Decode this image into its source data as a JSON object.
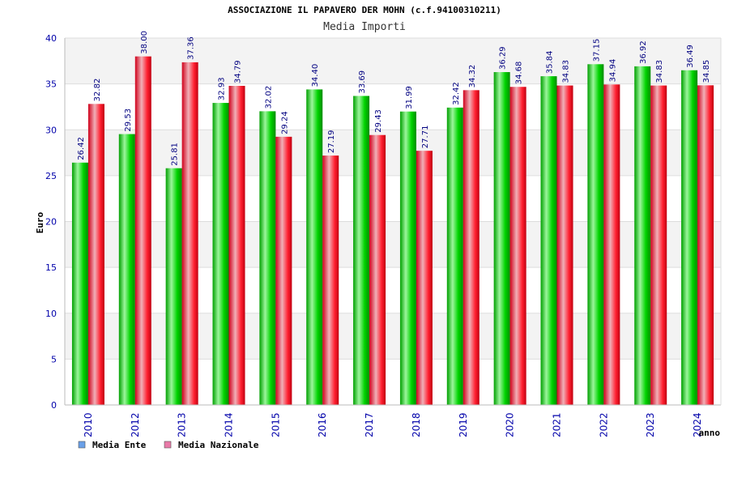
{
  "chart_data": {
    "type": "bar",
    "title": "ASSOCIAZIONE IL PAPAVERO DER MOHN (c.f.94100310211)",
    "subtitle": "Media Importi",
    "xlabel": "anno",
    "ylabel": "Euro",
    "ylim": [
      0,
      40
    ],
    "yticks": [
      0,
      5,
      10,
      15,
      20,
      25,
      30,
      35,
      40
    ],
    "grid": true,
    "legend_position": "bottom-left",
    "categories": [
      "2010",
      "2012",
      "2013",
      "2014",
      "2015",
      "2016",
      "2017",
      "2018",
      "2019",
      "2020",
      "2021",
      "2022",
      "2023",
      "2024"
    ],
    "series": [
      {
        "name": "Media Ente",
        "legend_color": "#6aa0e8",
        "bar_color": "#00c800",
        "values": [
          26.42,
          29.53,
          25.81,
          32.93,
          32.02,
          34.4,
          33.69,
          31.99,
          32.42,
          36.29,
          35.84,
          37.15,
          36.92,
          36.49
        ],
        "labels": [
          "26.42",
          "29.53",
          "25.81",
          "32.93",
          "32.02",
          "34.40",
          "33.69",
          "31.99",
          "32.42",
          "36.29",
          "35.84",
          "37.15",
          "36.92",
          "36.49"
        ]
      },
      {
        "name": "Media Nazionale",
        "legend_color": "#e87aa8",
        "bar_color": "#e8001a",
        "values": [
          32.82,
          38.0,
          37.36,
          34.79,
          29.24,
          27.19,
          29.43,
          27.71,
          34.32,
          34.68,
          34.83,
          34.94,
          34.83,
          34.85
        ],
        "labels": [
          "32.82",
          "38.00",
          "37.36",
          "34.79",
          "29.24",
          "27.19",
          "29.43",
          "27.71",
          "34.32",
          "34.68",
          "34.83",
          "34.94",
          "34.83",
          "34.85"
        ]
      }
    ]
  }
}
